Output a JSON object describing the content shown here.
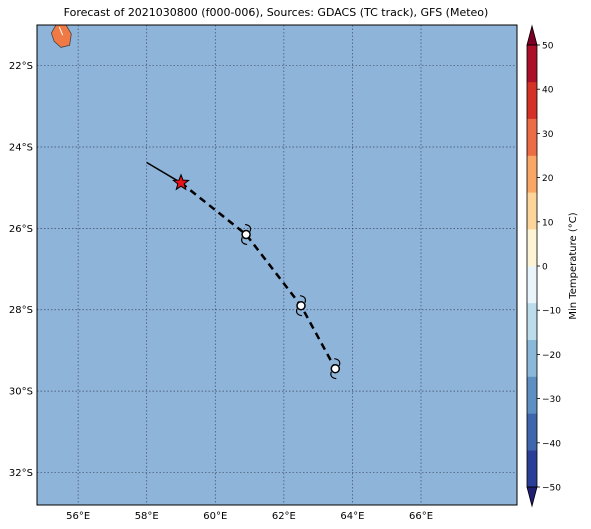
{
  "title": "Forecast of 2021030800 (f000-006), Sources: GDACS (TC track), GFS (Meteo)",
  "map": {
    "lon_range": [
      54.8,
      68.8
    ],
    "lat_range": [
      -32.8,
      -21.0
    ],
    "lon_ticks": [
      56,
      58,
      60,
      62,
      64,
      66
    ],
    "lat_ticks": [
      -22,
      -24,
      -26,
      -28,
      -30,
      -32
    ],
    "lon_tick_labels": [
      "56°E",
      "58°E",
      "60°E",
      "62°E",
      "64°E",
      "66°E"
    ],
    "lat_tick_labels": [
      "22°S",
      "24°S",
      "26°S",
      "28°S",
      "30°S",
      "32°S"
    ],
    "ocean_color": "#8fb4d9",
    "gridlines": true
  },
  "track": {
    "past": [
      [
        58.0,
        -24.38
      ],
      [
        59.0,
        -24.88
      ]
    ],
    "current_position": [
      59.0,
      -24.88
    ],
    "forecast": [
      [
        59.0,
        -24.88
      ],
      [
        60.9,
        -26.15
      ],
      [
        62.5,
        -27.9
      ],
      [
        63.5,
        -29.45
      ]
    ],
    "forecast_symbols": [
      [
        60.9,
        -26.15
      ],
      [
        62.5,
        -27.9
      ],
      [
        63.5,
        -29.45
      ]
    ],
    "current_marker_color": "#e8141c",
    "symbol_icon": "tropical-cyclone-icon"
  },
  "land": {
    "name_icon": "island-icon",
    "color": "#f07a45"
  },
  "colorbar": {
    "label": "Min Temperature (°C)",
    "min": -50,
    "max": 50,
    "ticks": [
      50,
      40,
      30,
      20,
      10,
      0,
      -10,
      -20,
      -30,
      -40,
      -50
    ],
    "tick_labels": [
      "50",
      "40",
      "30",
      "20",
      "10",
      "0",
      "−10",
      "−20",
      "−30",
      "−40",
      "−50"
    ],
    "colors_low_to_high": [
      "#201e73",
      "#293f97",
      "#3f66ac",
      "#5d8fc2",
      "#89b8d8",
      "#bcdcec",
      "#e9f5fa",
      "#fdf4d6",
      "#fdd59a",
      "#f9a666",
      "#ec6c45",
      "#d43226",
      "#ac0f28",
      "#7a0024"
    ]
  }
}
